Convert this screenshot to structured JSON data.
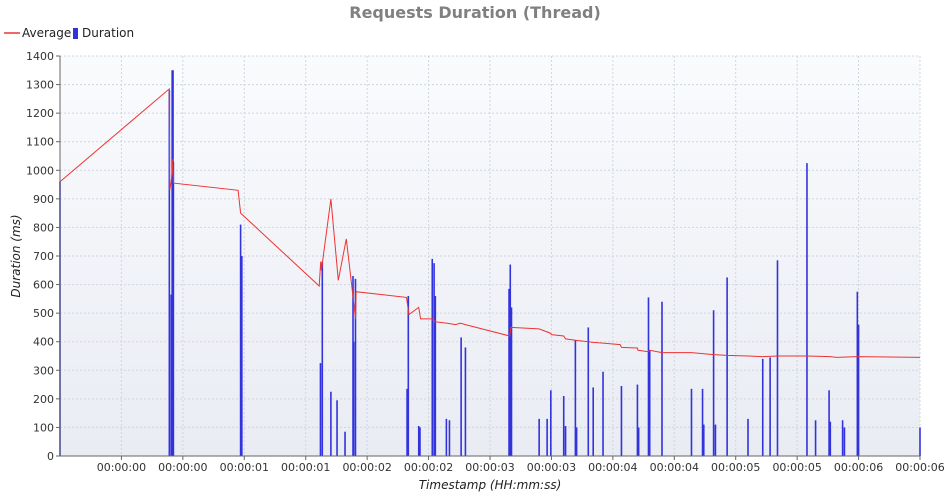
{
  "chart_data": {
    "type": "bar",
    "title": "Requests Duration (Thread)",
    "xlabel": "Timestamp (HH:mm:ss)",
    "ylabel": "Duration (ms)",
    "ylim": [
      0,
      1400
    ],
    "y_ticks": [
      0,
      100,
      200,
      300,
      400,
      500,
      600,
      700,
      800,
      900,
      1000,
      1100,
      1200,
      1300,
      1400
    ],
    "x_tick_labels": [
      "00:00:00",
      "00:00:00",
      "00:00:01",
      "00:00:01",
      "00:00:02",
      "00:00:02",
      "00:00:03",
      "00:00:03",
      "00:00:04",
      "00:00:04",
      "00:00:05",
      "00:00:05",
      "00:00:06",
      "00:00:06"
    ],
    "grid": true,
    "legend_position": "top-left",
    "legend": [
      {
        "label": "Average",
        "color": "#ee3333",
        "style": "line"
      },
      {
        "label": "Duration",
        "color": "#3333dd",
        "style": "bar"
      }
    ],
    "duration_bars": [
      [
        0.0,
        960
      ],
      [
        0.89,
        1280
      ],
      [
        0.905,
        565
      ],
      [
        0.913,
        1350
      ],
      [
        0.92,
        1350
      ],
      [
        0.923,
        1030
      ],
      [
        1.47,
        810
      ],
      [
        1.48,
        700
      ],
      [
        2.12,
        325
      ],
      [
        2.135,
        680
      ],
      [
        2.205,
        225
      ],
      [
        2.255,
        195
      ],
      [
        2.32,
        85
      ],
      [
        2.385,
        630
      ],
      [
        2.39,
        400
      ],
      [
        2.405,
        620
      ],
      [
        2.825,
        235
      ],
      [
        2.835,
        560
      ],
      [
        2.92,
        105
      ],
      [
        2.93,
        100
      ],
      [
        3.03,
        690
      ],
      [
        3.045,
        675
      ],
      [
        3.055,
        560
      ],
      [
        3.145,
        130
      ],
      [
        3.17,
        125
      ],
      [
        3.265,
        415
      ],
      [
        3.3,
        380
      ],
      [
        3.655,
        585
      ],
      [
        3.665,
        670
      ],
      [
        3.675,
        520
      ],
      [
        3.9,
        130
      ],
      [
        3.965,
        130
      ],
      [
        3.995,
        230
      ],
      [
        4.1,
        210
      ],
      [
        4.115,
        105
      ],
      [
        4.195,
        405
      ],
      [
        4.205,
        100
      ],
      [
        4.3,
        450
      ],
      [
        4.34,
        240
      ],
      [
        4.42,
        295
      ],
      [
        4.57,
        245
      ],
      [
        4.7,
        250
      ],
      [
        4.71,
        100
      ],
      [
        4.79,
        555
      ],
      [
        4.8,
        370
      ],
      [
        4.9,
        540
      ],
      [
        5.14,
        235
      ],
      [
        5.23,
        235
      ],
      [
        5.24,
        110
      ],
      [
        5.32,
        510
      ],
      [
        5.335,
        110
      ],
      [
        5.43,
        625
      ],
      [
        5.6,
        130
      ],
      [
        5.72,
        340
      ],
      [
        5.78,
        345
      ],
      [
        5.84,
        685
      ],
      [
        6.08,
        1025
      ],
      [
        6.15,
        125
      ],
      [
        6.26,
        230
      ],
      [
        6.27,
        120
      ],
      [
        6.37,
        125
      ],
      [
        6.385,
        100
      ],
      [
        6.49,
        575
      ],
      [
        6.5,
        460
      ],
      [
        7.0,
        100
      ]
    ],
    "average_series": [
      [
        0.0,
        960
      ],
      [
        0.89,
        1285
      ],
      [
        0.893,
        930
      ],
      [
        0.905,
        960
      ],
      [
        0.913,
        1000
      ],
      [
        0.918,
        1040
      ],
      [
        0.923,
        955
      ],
      [
        1.45,
        930
      ],
      [
        1.47,
        850
      ],
      [
        2.11,
        595
      ],
      [
        2.122,
        680
      ],
      [
        2.128,
        650
      ],
      [
        2.205,
        900
      ],
      [
        2.265,
        615
      ],
      [
        2.33,
        760
      ],
      [
        2.39,
        540
      ],
      [
        2.405,
        480
      ],
      [
        2.41,
        575
      ],
      [
        2.82,
        555
      ],
      [
        2.84,
        495
      ],
      [
        2.92,
        520
      ],
      [
        2.935,
        480
      ],
      [
        3.04,
        480
      ],
      [
        3.05,
        470
      ],
      [
        3.145,
        465
      ],
      [
        3.22,
        460
      ],
      [
        3.26,
        465
      ],
      [
        3.3,
        460
      ],
      [
        3.66,
        420
      ],
      [
        3.67,
        450
      ],
      [
        3.9,
        445
      ],
      [
        3.99,
        430
      ],
      [
        4.0,
        425
      ],
      [
        4.1,
        420
      ],
      [
        4.115,
        410
      ],
      [
        4.195,
        405
      ],
      [
        4.3,
        400
      ],
      [
        4.33,
        398
      ],
      [
        4.42,
        395
      ],
      [
        4.56,
        390
      ],
      [
        4.57,
        380
      ],
      [
        4.7,
        378
      ],
      [
        4.705,
        370
      ],
      [
        4.79,
        365
      ],
      [
        4.8,
        370
      ],
      [
        4.9,
        362
      ],
      [
        5.14,
        362
      ],
      [
        5.32,
        355
      ],
      [
        5.43,
        352
      ],
      [
        5.6,
        350
      ],
      [
        5.72,
        348
      ],
      [
        5.84,
        350
      ],
      [
        6.08,
        350
      ],
      [
        6.27,
        348
      ],
      [
        6.32,
        345
      ],
      [
        6.49,
        348
      ],
      [
        7.0,
        345
      ]
    ]
  }
}
